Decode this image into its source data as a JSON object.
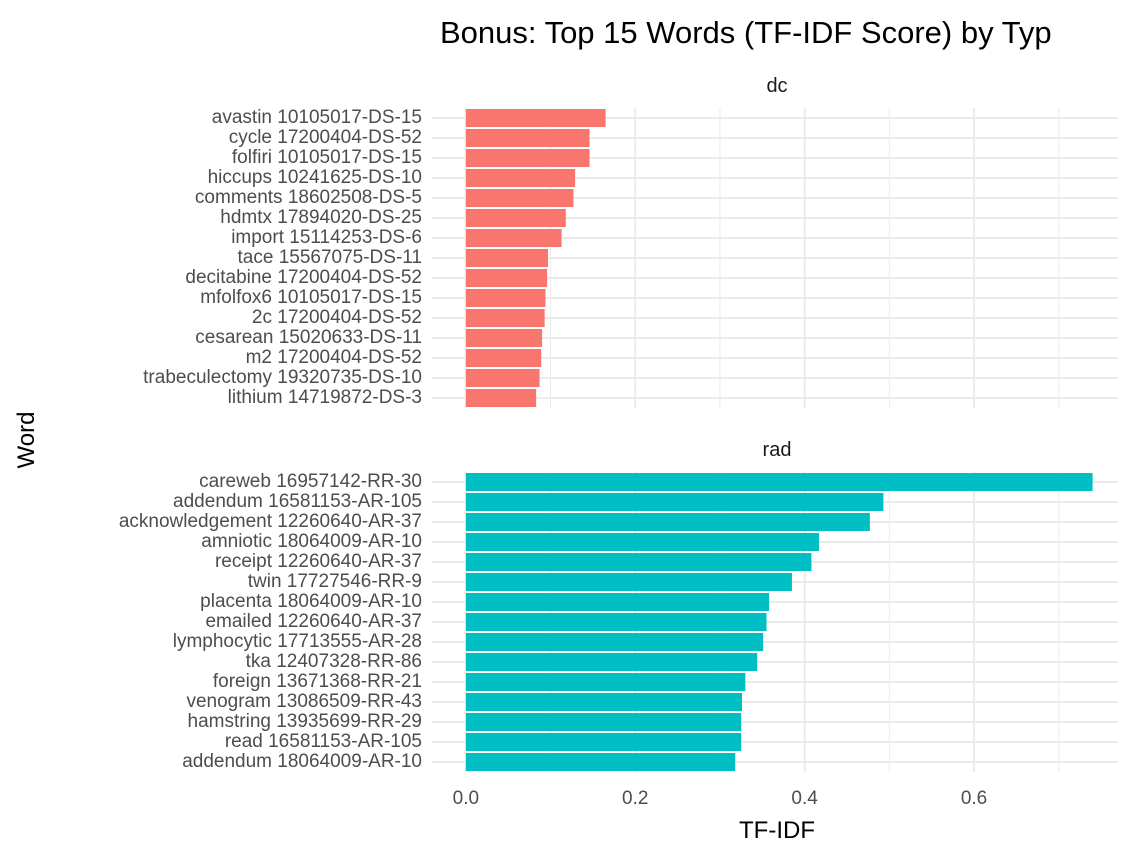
{
  "chart_data": {
    "type": "bar",
    "orientation": "horizontal",
    "title": "Bonus: Top 15 Words (TF-IDF Score) by Typ",
    "xlabel": "TF-IDF",
    "ylabel": "Word",
    "xlim": [
      -0.04,
      0.77
    ],
    "x_ticks": [
      0.0,
      0.2,
      0.4,
      0.6
    ],
    "x_tick_labels": [
      "0.0",
      "0.2",
      "0.4",
      "0.6"
    ],
    "grid": true,
    "legend": "none",
    "facets": [
      {
        "label": "dc",
        "color": "#F8766D",
        "categories": [
          "avastin 10105017-DS-15",
          "cycle 17200404-DS-52",
          "folfiri 10105017-DS-15",
          "hiccups 10241625-DS-10",
          "comments 18602508-DS-5",
          "hdmtx 17894020-DS-25",
          "import 15114253-DS-6",
          "tace 15567075-DS-11",
          "decitabine 17200404-DS-52",
          "mfolfox6 10105017-DS-15",
          "2c 17200404-DS-52",
          "cesarean 15020633-DS-11",
          "m2 17200404-DS-52",
          "trabeculectomy 19320735-DS-10",
          "lithium 14719872-DS-3"
        ],
        "values": [
          0.165,
          0.146,
          0.146,
          0.129,
          0.127,
          0.118,
          0.113,
          0.097,
          0.096,
          0.094,
          0.093,
          0.09,
          0.089,
          0.087,
          0.083
        ]
      },
      {
        "label": "rad",
        "color": "#00BFC4",
        "categories": [
          "careweb 16957142-RR-30",
          "addendum 16581153-AR-105",
          "acknowledgement 12260640-AR-37",
          "amniotic 18064009-AR-10",
          "receipt 12260640-AR-37",
          "twin 17727546-RR-9",
          "placenta 18064009-AR-10",
          "emailed 12260640-AR-37",
          "lymphocytic 17713555-AR-28",
          "tka 12407328-RR-86",
          "foreign 13671368-RR-21",
          "venogram 13086509-RR-43",
          "hamstring 13935699-RR-29",
          "read 16581153-AR-105",
          "addendum 18064009-AR-10"
        ],
        "values": [
          0.74,
          0.493,
          0.477,
          0.417,
          0.408,
          0.385,
          0.358,
          0.355,
          0.351,
          0.344,
          0.33,
          0.326,
          0.325,
          0.325,
          0.318
        ]
      }
    ]
  }
}
